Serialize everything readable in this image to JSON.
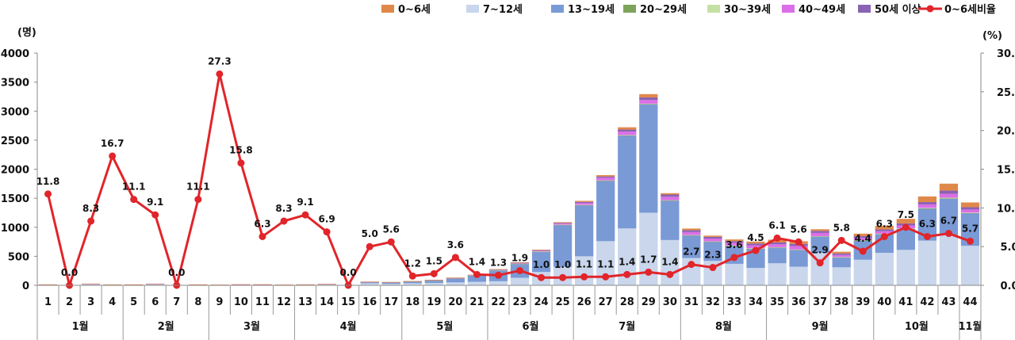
{
  "chart_data": {
    "type": "bar",
    "y_left_label": "(명)",
    "y_right_label": "(%)",
    "y_left_range": [
      0,
      4000
    ],
    "y_left_ticks": [
      "0",
      "500",
      "1000",
      "1500",
      "2000",
      "2500",
      "3000",
      "3500",
      "4000"
    ],
    "y_right_range": [
      0,
      30
    ],
    "y_right_ticks": [
      "0.0",
      "5.0",
      "10.0",
      "15.0",
      "20.0",
      "25.0",
      "30.0"
    ],
    "grid": false,
    "legend_position": "top-right",
    "categories": [
      "1",
      "2",
      "3",
      "4",
      "5",
      "6",
      "7",
      "8",
      "9",
      "10",
      "11",
      "12",
      "13",
      "14",
      "15",
      "16",
      "17",
      "18",
      "19",
      "20",
      "21",
      "22",
      "23",
      "24",
      "25",
      "26",
      "27",
      "28",
      "29",
      "30",
      "31",
      "32",
      "33",
      "34",
      "35",
      "36",
      "37",
      "38",
      "39",
      "40",
      "41",
      "42",
      "43",
      "44"
    ],
    "months": [
      {
        "label": "1월",
        "start": 0,
        "end": 3
      },
      {
        "label": "2월",
        "start": 4,
        "end": 7
      },
      {
        "label": "3월",
        "start": 8,
        "end": 11
      },
      {
        "label": "4월",
        "start": 12,
        "end": 16
      },
      {
        "label": "5월",
        "start": 17,
        "end": 20
      },
      {
        "label": "6월",
        "start": 21,
        "end": 24
      },
      {
        "label": "7월",
        "start": 25,
        "end": 29
      },
      {
        "label": "8월",
        "start": 30,
        "end": 33
      },
      {
        "label": "9월",
        "start": 34,
        "end": 38
      },
      {
        "label": "10월",
        "start": 39,
        "end": 42
      },
      {
        "label": "11월",
        "start": 43,
        "end": 43
      }
    ],
    "series": [
      {
        "name": "0~6세",
        "color": "#e0884a",
        "values": [
          2,
          0,
          3,
          3,
          2,
          3,
          0,
          2,
          3,
          3,
          1,
          1,
          1,
          2,
          0,
          4,
          3,
          1,
          2,
          5,
          2,
          4,
          7,
          8,
          12,
          18,
          23,
          40,
          57,
          24,
          28,
          21,
          29,
          32,
          49,
          44,
          29,
          31,
          44,
          63,
          79,
          97,
          120,
          82
        ]
      },
      {
        "name": "7~12세",
        "color": "#c9d6ec",
        "values": [
          10,
          4,
          18,
          9,
          10,
          19,
          4,
          10,
          6,
          10,
          11,
          8,
          10,
          15,
          4,
          35,
          25,
          35,
          40,
          50,
          60,
          70,
          130,
          230,
          320,
          500,
          760,
          980,
          1250,
          780,
          470,
          420,
          370,
          300,
          380,
          320,
          560,
          310,
          440,
          560,
          610,
          770,
          860,
          680
        ]
      },
      {
        "name": "13~19세",
        "color": "#7a9ad6",
        "values": [
          3,
          2,
          8,
          3,
          3,
          6,
          2,
          3,
          2,
          4,
          4,
          3,
          4,
          6,
          3,
          20,
          25,
          30,
          45,
          70,
          110,
          190,
          240,
          350,
          720,
          880,
          1040,
          1600,
          1870,
          680,
          390,
          330,
          310,
          330,
          270,
          290,
          280,
          170,
          330,
          320,
          360,
          550,
          630,
          560
        ]
      },
      {
        "name": "20~29세",
        "color": "#7ea35a",
        "values": [
          0,
          0,
          0,
          0,
          0,
          0,
          0,
          0,
          0,
          0,
          0,
          0,
          0,
          0,
          0,
          1,
          1,
          1,
          1,
          1,
          1,
          1,
          2,
          2,
          2,
          3,
          3,
          4,
          4,
          3,
          3,
          3,
          3,
          3,
          3,
          3,
          3,
          3,
          3,
          4,
          4,
          5,
          6,
          5
        ]
      },
      {
        "name": "30~39세",
        "color": "#c6e0a4",
        "values": [
          0,
          0,
          0,
          0,
          0,
          0,
          0,
          0,
          0,
          0,
          0,
          0,
          0,
          0,
          0,
          1,
          1,
          1,
          1,
          1,
          1,
          2,
          2,
          3,
          3,
          4,
          5,
          5,
          5,
          4,
          4,
          4,
          4,
          4,
          4,
          4,
          4,
          4,
          5,
          6,
          7,
          9,
          12,
          8
        ]
      },
      {
        "name": "40~49세",
        "color": "#dc6ee8",
        "values": [
          1,
          0,
          1,
          0,
          1,
          1,
          0,
          1,
          1,
          1,
          1,
          1,
          1,
          1,
          0,
          2,
          2,
          3,
          3,
          4,
          5,
          8,
          10,
          14,
          20,
          32,
          45,
          58,
          62,
          58,
          50,
          48,
          46,
          52,
          50,
          60,
          55,
          35,
          40,
          42,
          50,
          60,
          68,
          52
        ]
      },
      {
        "name": "50세 이상",
        "color": "#8a63b3",
        "values": [
          0,
          0,
          0,
          0,
          0,
          0,
          0,
          0,
          0,
          0,
          0,
          0,
          0,
          0,
          0,
          1,
          1,
          2,
          2,
          2,
          3,
          4,
          5,
          7,
          10,
          18,
          22,
          35,
          45,
          38,
          33,
          30,
          28,
          32,
          30,
          37,
          35,
          25,
          28,
          30,
          35,
          40,
          55,
          40
        ]
      }
    ],
    "line_series": {
      "name": "0~6세비율",
      "color": "#e1252a",
      "axis": "right",
      "values": [
        11.8,
        0.0,
        8.3,
        16.7,
        11.1,
        9.1,
        0.0,
        11.1,
        27.3,
        15.8,
        6.3,
        8.3,
        9.1,
        6.9,
        0.0,
        5.0,
        5.6,
        1.2,
        1.5,
        3.6,
        1.4,
        1.3,
        1.9,
        1.0,
        1.0,
        1.1,
        1.1,
        1.4,
        1.7,
        1.4,
        2.7,
        2.3,
        3.6,
        4.5,
        6.1,
        5.6,
        2.9,
        5.8,
        4.4,
        6.3,
        7.5,
        6.3,
        6.7,
        5.7
      ],
      "labels": [
        "11.8",
        "0.0",
        "8.3",
        "16.7",
        "11.1",
        "9.1",
        "0.0",
        "11.1",
        "27.3",
        "15.8",
        "6.3",
        "8.3",
        "9.1",
        "6.9",
        "0.0",
        "5.0",
        "5.6",
        "1.2",
        "1.5",
        "3.6",
        "1.4",
        "1.3",
        "1.9",
        "1.0",
        "1.0",
        "1.1",
        "1.1",
        "1.4",
        "1.7",
        "1.4",
        "2.7",
        "2.3",
        "3.6",
        "4.5",
        "6.1",
        "5.6",
        "2.9",
        "5.8",
        "4.4",
        "6.3",
        "7.5",
        "6.3",
        "6.7",
        "5.7"
      ]
    }
  }
}
